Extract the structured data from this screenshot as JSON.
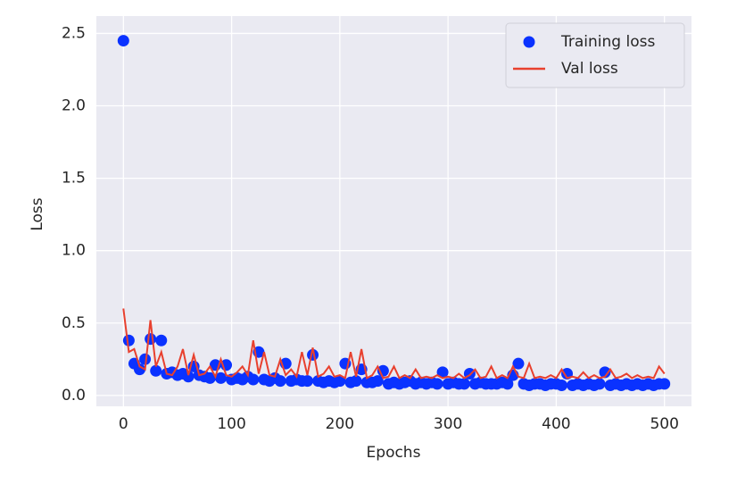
{
  "chart_data": {
    "type": "line",
    "xlabel": "Epochs",
    "ylabel": "Loss",
    "x": [
      0,
      5,
      10,
      15,
      20,
      25,
      30,
      35,
      40,
      45,
      50,
      55,
      60,
      65,
      70,
      75,
      80,
      85,
      90,
      95,
      100,
      105,
      110,
      115,
      120,
      125,
      130,
      135,
      140,
      145,
      150,
      155,
      160,
      165,
      170,
      175,
      180,
      185,
      190,
      195,
      200,
      205,
      210,
      215,
      220,
      225,
      230,
      235,
      240,
      245,
      250,
      255,
      260,
      265,
      270,
      275,
      280,
      285,
      290,
      295,
      300,
      305,
      310,
      315,
      320,
      325,
      330,
      335,
      340,
      345,
      350,
      355,
      360,
      365,
      370,
      375,
      380,
      385,
      390,
      395,
      400,
      405,
      410,
      415,
      420,
      425,
      430,
      435,
      440,
      445,
      450,
      455,
      460,
      465,
      470,
      475,
      480,
      485,
      490,
      495,
      500
    ],
    "series": [
      {
        "name": "Training loss",
        "type": "scatter",
        "color": "#0a32ff",
        "values": [
          2.45,
          0.38,
          0.22,
          0.18,
          0.25,
          0.39,
          0.17,
          0.38,
          0.15,
          0.16,
          0.14,
          0.15,
          0.13,
          0.2,
          0.14,
          0.13,
          0.12,
          0.21,
          0.12,
          0.21,
          0.11,
          0.12,
          0.11,
          0.13,
          0.11,
          0.3,
          0.11,
          0.1,
          0.12,
          0.1,
          0.22,
          0.1,
          0.11,
          0.1,
          0.1,
          0.28,
          0.1,
          0.09,
          0.1,
          0.09,
          0.1,
          0.22,
          0.09,
          0.1,
          0.18,
          0.09,
          0.09,
          0.1,
          0.17,
          0.08,
          0.09,
          0.08,
          0.09,
          0.1,
          0.08,
          0.09,
          0.08,
          0.09,
          0.08,
          0.16,
          0.08,
          0.09,
          0.08,
          0.08,
          0.15,
          0.08,
          0.09,
          0.08,
          0.08,
          0.08,
          0.09,
          0.08,
          0.14,
          0.22,
          0.08,
          0.07,
          0.08,
          0.08,
          0.07,
          0.08,
          0.08,
          0.07,
          0.15,
          0.07,
          0.08,
          0.07,
          0.08,
          0.07,
          0.08,
          0.16,
          0.07,
          0.08,
          0.07,
          0.08,
          0.07,
          0.08,
          0.07,
          0.08,
          0.07,
          0.08,
          0.08
        ]
      },
      {
        "name": "Val loss",
        "type": "line",
        "color": "#e8402e",
        "values": [
          0.6,
          0.3,
          0.32,
          0.2,
          0.18,
          0.52,
          0.2,
          0.3,
          0.15,
          0.14,
          0.2,
          0.32,
          0.14,
          0.28,
          0.14,
          0.15,
          0.2,
          0.13,
          0.25,
          0.14,
          0.13,
          0.16,
          0.2,
          0.14,
          0.38,
          0.15,
          0.3,
          0.14,
          0.13,
          0.25,
          0.14,
          0.18,
          0.13,
          0.3,
          0.14,
          0.33,
          0.13,
          0.15,
          0.2,
          0.13,
          0.14,
          0.12,
          0.3,
          0.13,
          0.32,
          0.12,
          0.14,
          0.2,
          0.12,
          0.13,
          0.2,
          0.12,
          0.14,
          0.12,
          0.18,
          0.12,
          0.13,
          0.12,
          0.14,
          0.12,
          0.13,
          0.12,
          0.15,
          0.12,
          0.14,
          0.18,
          0.12,
          0.13,
          0.2,
          0.12,
          0.14,
          0.12,
          0.2,
          0.13,
          0.12,
          0.22,
          0.12,
          0.13,
          0.12,
          0.14,
          0.12,
          0.18,
          0.12,
          0.13,
          0.12,
          0.16,
          0.12,
          0.14,
          0.12,
          0.13,
          0.18,
          0.12,
          0.13,
          0.15,
          0.12,
          0.14,
          0.12,
          0.13,
          0.12,
          0.2,
          0.15
        ]
      }
    ],
    "xlim": [
      -25,
      525
    ],
    "xticks": [
      0,
      100,
      200,
      300,
      400,
      500
    ],
    "ylim": [
      -0.075,
      2.62
    ],
    "yticks": [
      {
        "value": 0,
        "label": "0.0"
      },
      0.5,
      {
        "value": 1,
        "label": "1.0"
      },
      1.5,
      {
        "value": 2,
        "label": "2.0"
      },
      2.5
    ],
    "grid": true,
    "legend": "upper right"
  }
}
